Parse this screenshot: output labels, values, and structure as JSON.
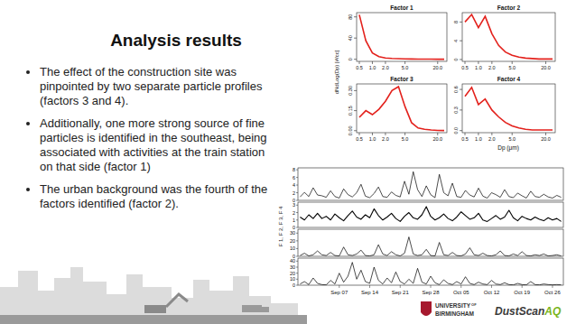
{
  "slide": {
    "title": "Analysis results",
    "bullets": [
      "The effect of the construction site was pinpointed by two separate particle profiles (factors 3 and 4).",
      "Additionally, one more strong source of fine particles is identified in the southeast, being associated with activities at the train station on that side (factor 1)",
      "The urban background was the fourth of the factors identified (factor 2)."
    ],
    "university": [
      "UNIVERSITY",
      "OF",
      "BIRMINGHAM"
    ],
    "brand": [
      "DustScan",
      "AQ"
    ]
  },
  "chart_data": [
    {
      "type": "line",
      "ylabel": "dNdLog(Dp) [#/cc]",
      "xlabel": "Dp (μm)",
      "categories": [
        "0.5",
        null,
        "1.0",
        null,
        "2.0",
        null,
        null,
        "5.0",
        null,
        null,
        null,
        null,
        "20.0",
        null
      ],
      "panels": [
        {
          "title": "Factor 1",
          "ylim": [
            -4,
            88
          ],
          "yticks": [
            0,
            40,
            80
          ],
          "series": [
            {
              "color": "#e3211c",
              "values": [
                84,
                35,
                12,
                5,
                2.5,
                1.5,
                1,
                0.6,
                0.4,
                0.3,
                0.2,
                0.2,
                0.1,
                0.1
              ]
            }
          ]
        },
        {
          "title": "Factor 2",
          "ylim": [
            -0.4,
            10
          ],
          "yticks": [
            0,
            4,
            8
          ],
          "series": [
            {
              "color": "#e3211c",
              "values": [
                8,
                9.6,
                6.8,
                9.2,
                5.5,
                3,
                1.6,
                0.9,
                0.5,
                0.3,
                0.2,
                0.1,
                0.1,
                0.1
              ]
            }
          ]
        },
        {
          "title": "Factor 3",
          "ylim": [
            -0.015,
            0.35
          ],
          "yticks": [
            {
              "value": 0,
              "label": "0.00"
            },
            {
              "value": 0.15,
              "label": "0.15"
            },
            {
              "value": 0.3,
              "label": "0.30"
            }
          ],
          "series": [
            {
              "color": "#e3211c",
              "values": [
                0.1,
                0.15,
                0.12,
                0.16,
                0.22,
                0.3,
                0.33,
                0.18,
                0.06,
                0.02,
                0.01,
                0.005,
                0.002,
                0.001
              ]
            }
          ]
        },
        {
          "title": "Factor 4",
          "ylim": [
            -0.03,
            0.68
          ],
          "yticks": [
            {
              "value": 0,
              "label": "0.0"
            },
            {
              "value": 0.3,
              "label": "0.3"
            },
            {
              "value": 0.6,
              "label": "0.6"
            }
          ],
          "series": [
            {
              "color": "#e3211c",
              "values": [
                0.5,
                0.63,
                0.38,
                0.46,
                0.3,
                0.2,
                0.12,
                0.07,
                0.04,
                0.02,
                0.01,
                0.01,
                0.01,
                0.01
              ]
            }
          ]
        }
      ]
    },
    {
      "type": "line",
      "ylabel": "F 1, F 2, F 3, F 4",
      "x": [
        -9,
        -8,
        -7,
        -6,
        -5,
        -4,
        -3,
        -2,
        -1,
        0,
        1,
        2,
        3,
        4,
        5,
        6,
        7,
        8,
        9,
        10,
        11,
        12,
        13,
        14,
        15,
        16,
        17,
        18,
        19,
        20,
        21,
        22,
        23,
        24,
        25,
        26,
        27,
        28,
        29,
        30,
        31,
        32,
        33,
        34,
        35,
        36,
        37,
        38,
        39,
        40,
        41,
        42,
        43,
        44,
        45,
        46,
        47,
        48,
        49,
        50,
        51
      ],
      "xlim": [
        -9.5,
        51.5
      ],
      "xticks": [
        {
          "value": 0,
          "label": "Sep 07"
        },
        {
          "value": 7,
          "label": "Sep 14"
        },
        {
          "value": 14,
          "label": "Sep 21"
        },
        {
          "value": 21,
          "label": "Sep 28"
        },
        {
          "value": 28,
          "label": "Oct 05"
        },
        {
          "value": 35,
          "label": "Oct 12"
        },
        {
          "value": 42,
          "label": "Oct 19"
        },
        {
          "value": 49,
          "label": "Oct 26"
        }
      ],
      "panels": [
        {
          "ylim": [
            0,
            8.5
          ],
          "yticks": [
            0,
            2,
            4,
            6,
            8
          ],
          "series": [
            {
              "color": "#000000",
              "values": [
                0.9,
                2.1,
                1.0,
                3.3,
                1.4,
                1.2,
                0.8,
                2.5,
                1.0,
                0.6,
                3.0,
                1.5,
                0.9,
                2.0,
                4.2,
                1.1,
                0.7,
                1.8,
                3.5,
                1.0,
                0.8,
                2.2,
                1.3,
                0.9,
                5.0,
                1.6,
                7.5,
                2.8,
                1.0,
                3.8,
                1.5,
                0.7,
                6.8,
                2.0,
                1.2,
                4.5,
                1.0,
                0.8,
                2.6,
                1.4,
                0.9,
                3.2,
                1.1,
                0.6,
                2.0,
                1.5,
                0.8,
                2.8,
                1.0,
                0.7,
                1.9,
                1.2,
                0.6,
                2.4,
                1.0,
                0.8,
                1.6,
                0.9,
                0.6,
                1.3,
                0.8
              ]
            }
          ]
        },
        {
          "ylim": [
            0,
            3.4
          ],
          "yticks": [
            0,
            1,
            2,
            3
          ],
          "series": [
            {
              "color": "#000000",
              "values": [
                1.4,
                1.0,
                1.7,
                1.2,
                1.9,
                1.2,
                1.5,
                1.0,
                1.8,
                1.3,
                0.9,
                1.6,
                2.2,
                1.4,
                1.1,
                1.7,
                1.3,
                2.5,
                1.6,
                1.0,
                1.4,
                1.9,
                1.2,
                0.8,
                1.5,
                2.0,
                1.3,
                1.1,
                1.7,
                2.8,
                1.5,
                1.0,
                1.3,
                1.8,
                1.2,
                0.9,
                1.4,
                2.1,
                1.6,
                1.1,
                1.3,
                1.9,
                1.0,
                0.8,
                1.2,
                1.6,
                1.1,
                1.4,
                2.3,
                1.3,
                0.9,
                1.5,
                1.2,
                1.0,
                1.4,
                1.1,
                0.9,
                1.3,
                1.0,
                1.2,
                0.8
              ]
            }
          ]
        },
        {
          "ylim": [
            0,
            35
          ],
          "yticks": [
            0,
            10,
            20,
            30
          ],
          "series": [
            {
              "color": "#000000",
              "values": [
                1,
                4,
                0.5,
                2,
                7,
                2,
                1,
                5,
                1,
                0.5,
                12,
                2,
                1,
                3,
                8,
                1,
                0.5,
                2,
                15,
                3,
                1,
                6,
                2,
                0.5,
                4,
                25,
                3,
                1,
                2,
                9,
                1,
                0.5,
                18,
                2,
                1,
                5,
                1,
                0.5,
                3,
                11,
                2,
                1,
                4,
                1,
                0.5,
                2,
                7,
                1,
                0.5,
                3,
                1,
                6,
                1,
                0.5,
                2,
                1,
                3,
                0.5,
                1,
                2,
                0.5
              ]
            }
          ]
        },
        {
          "ylim": [
            0,
            45
          ],
          "yticks": [
            0,
            10,
            20,
            30,
            40
          ],
          "series": [
            {
              "color": "#000000",
              "values": [
                2,
                6,
                1,
                12,
                3,
                1,
                0.5,
                8,
                2,
                20,
                5,
                15,
                38,
                10,
                25,
                6,
                3,
                30,
                8,
                2,
                12,
                4,
                22,
                6,
                2,
                10,
                3,
                28,
                5,
                2,
                15,
                4,
                1,
                9,
                3,
                1,
                6,
                2,
                14,
                3,
                1,
                5,
                2,
                1,
                8,
                2,
                1,
                4,
                1,
                0.5,
                3,
                1,
                0.5,
                6,
                1,
                0.5,
                2,
                1,
                0.5,
                1,
                0.5
              ]
            }
          ]
        }
      ]
    }
  ]
}
